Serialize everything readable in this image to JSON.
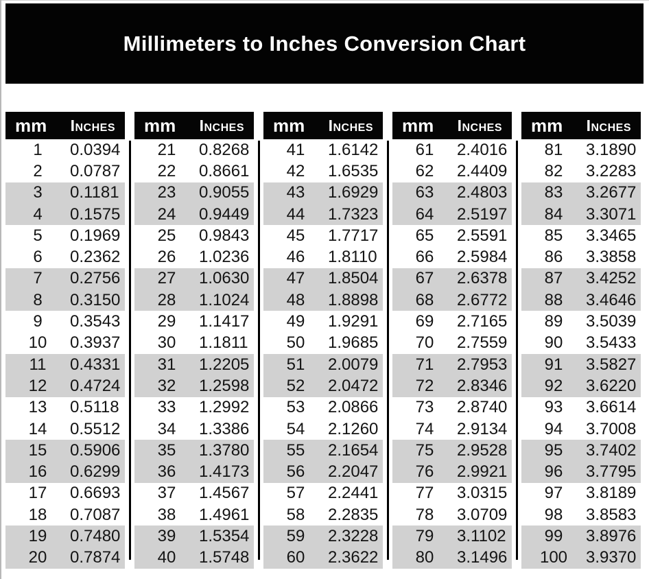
{
  "title": "Millimeters to Inches Conversion Chart",
  "table": {
    "header_mm": "mm",
    "header_inches": "Inches",
    "groups_count": 5,
    "rows_per_group": 20
  },
  "colors": {
    "banner_bg": "#030303",
    "header_bg": "#050505",
    "header_text": "#ffffff",
    "stripe_gray": "#d1d1d1",
    "body_text": "#141414",
    "page_bg": "#ffffff",
    "divider": "#000000"
  },
  "chart_data": {
    "type": "table",
    "title": "Millimeters to Inches Conversion Chart",
    "columns": [
      "mm",
      "Inches"
    ],
    "layout": "5 side-by-side column groups of 20 rows, zebra-striped in bands of two rows, black vertical dividers between groups",
    "rows": [
      [
        1,
        0.0394
      ],
      [
        2,
        0.0787
      ],
      [
        3,
        0.1181
      ],
      [
        4,
        0.1575
      ],
      [
        5,
        0.1969
      ],
      [
        6,
        0.2362
      ],
      [
        7,
        0.2756
      ],
      [
        8,
        0.315
      ],
      [
        9,
        0.3543
      ],
      [
        10,
        0.3937
      ],
      [
        11,
        0.4331
      ],
      [
        12,
        0.4724
      ],
      [
        13,
        0.5118
      ],
      [
        14,
        0.5512
      ],
      [
        15,
        0.5906
      ],
      [
        16,
        0.6299
      ],
      [
        17,
        0.6693
      ],
      [
        18,
        0.7087
      ],
      [
        19,
        0.748
      ],
      [
        20,
        0.7874
      ],
      [
        21,
        0.8268
      ],
      [
        22,
        0.8661
      ],
      [
        23,
        0.9055
      ],
      [
        24,
        0.9449
      ],
      [
        25,
        0.9843
      ],
      [
        26,
        1.0236
      ],
      [
        27,
        1.063
      ],
      [
        28,
        1.1024
      ],
      [
        29,
        1.1417
      ],
      [
        30,
        1.1811
      ],
      [
        31,
        1.2205
      ],
      [
        32,
        1.2598
      ],
      [
        33,
        1.2992
      ],
      [
        34,
        1.3386
      ],
      [
        35,
        1.378
      ],
      [
        36,
        1.4173
      ],
      [
        37,
        1.4567
      ],
      [
        38,
        1.4961
      ],
      [
        39,
        1.5354
      ],
      [
        40,
        1.5748
      ],
      [
        41,
        1.6142
      ],
      [
        42,
        1.6535
      ],
      [
        43,
        1.6929
      ],
      [
        44,
        1.7323
      ],
      [
        45,
        1.7717
      ],
      [
        46,
        1.811
      ],
      [
        47,
        1.8504
      ],
      [
        48,
        1.8898
      ],
      [
        49,
        1.9291
      ],
      [
        50,
        1.9685
      ],
      [
        51,
        2.0079
      ],
      [
        52,
        2.0472
      ],
      [
        53,
        2.0866
      ],
      [
        54,
        2.126
      ],
      [
        55,
        2.1654
      ],
      [
        56,
        2.2047
      ],
      [
        57,
        2.2441
      ],
      [
        58,
        2.2835
      ],
      [
        59,
        2.3228
      ],
      [
        60,
        2.3622
      ],
      [
        61,
        2.4016
      ],
      [
        62,
        2.4409
      ],
      [
        63,
        2.4803
      ],
      [
        64,
        2.5197
      ],
      [
        65,
        2.5591
      ],
      [
        66,
        2.5984
      ],
      [
        67,
        2.6378
      ],
      [
        68,
        2.6772
      ],
      [
        69,
        2.7165
      ],
      [
        70,
        2.7559
      ],
      [
        71,
        2.7953
      ],
      [
        72,
        2.8346
      ],
      [
        73,
        2.874
      ],
      [
        74,
        2.9134
      ],
      [
        75,
        2.9528
      ],
      [
        76,
        2.9921
      ],
      [
        77,
        3.0315
      ],
      [
        78,
        3.0709
      ],
      [
        79,
        3.1102
      ],
      [
        80,
        3.1496
      ],
      [
        81,
        3.189
      ],
      [
        82,
        3.2283
      ],
      [
        83,
        3.2677
      ],
      [
        84,
        3.3071
      ],
      [
        85,
        3.3465
      ],
      [
        86,
        3.3858
      ],
      [
        87,
        3.4252
      ],
      [
        88,
        3.4646
      ],
      [
        89,
        3.5039
      ],
      [
        90,
        3.5433
      ],
      [
        91,
        3.5827
      ],
      [
        92,
        3.622
      ],
      [
        93,
        3.6614
      ],
      [
        94,
        3.7008
      ],
      [
        95,
        3.7402
      ],
      [
        96,
        3.7795
      ],
      [
        97,
        3.8189
      ],
      [
        98,
        3.8583
      ],
      [
        99,
        3.8976
      ],
      [
        100,
        3.937
      ]
    ]
  }
}
